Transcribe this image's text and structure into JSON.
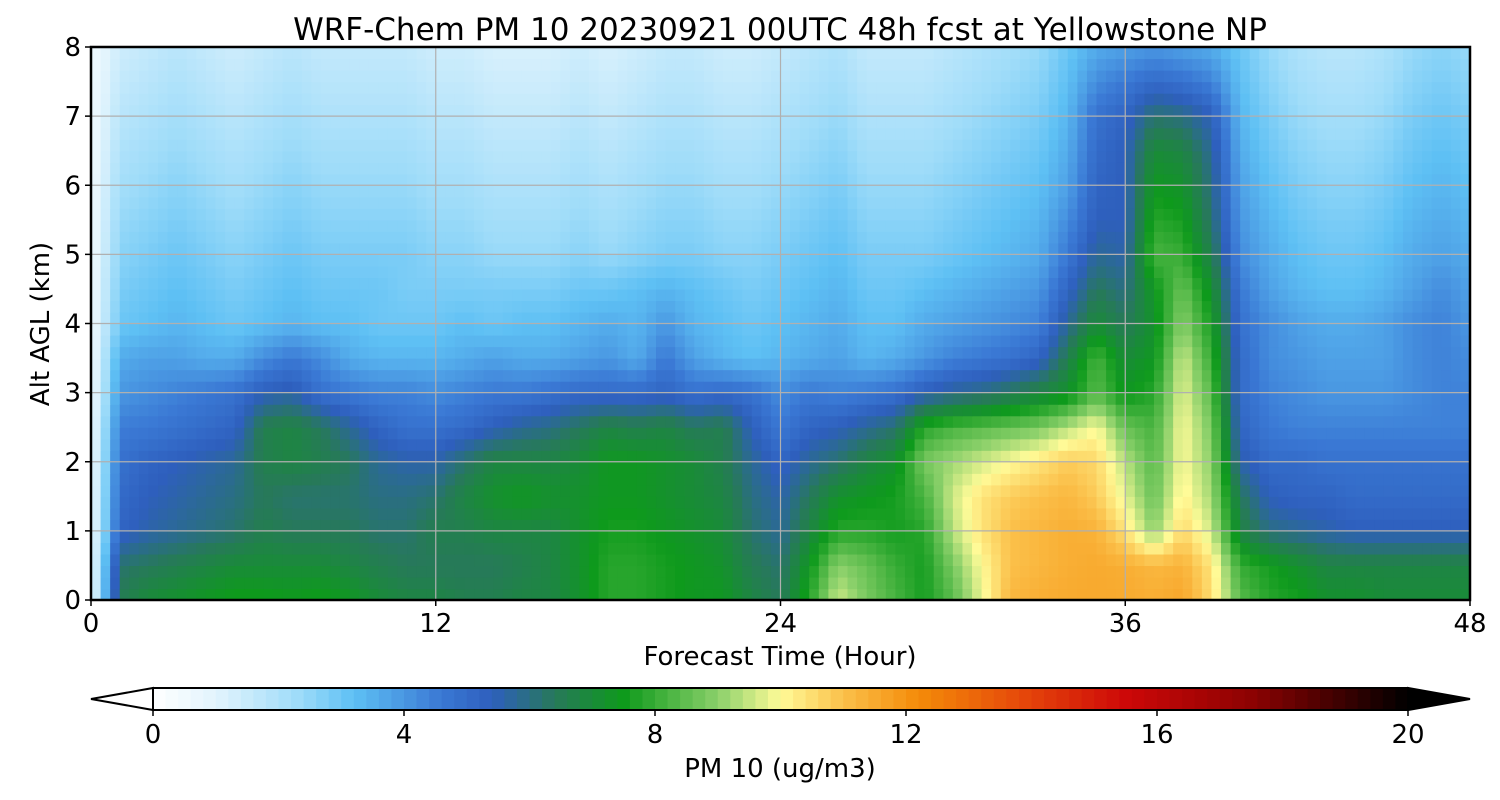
{
  "chart_data": {
    "type": "heatmap",
    "title": "WRF-Chem PM 10  20230921 00UTC 48h fcst at Yellowstone NP",
    "xlabel": "Forecast Time (Hour)",
    "ylabel": "Alt AGL (km)",
    "xlim": [
      0,
      48
    ],
    "ylim": [
      0,
      8
    ],
    "x_ticks": [
      "0",
      "12",
      "24",
      "36",
      "48"
    ],
    "y_ticks": [
      "0",
      "1",
      "2",
      "3",
      "4",
      "5",
      "6",
      "7",
      "8"
    ],
    "grid": true,
    "colorbar": {
      "label": "PM 10  (ug/m3)",
      "range": [
        0,
        20
      ],
      "ticks": [
        "0",
        "4",
        "8",
        "12",
        "16",
        "20"
      ],
      "extend": "both",
      "stops": [
        {
          "v": 0,
          "c": "#ffffff"
        },
        {
          "v": 1,
          "c": "#e2f4fd"
        },
        {
          "v": 2.3,
          "c": "#9fdcf9"
        },
        {
          "v": 3.2,
          "c": "#5ec0f4"
        },
        {
          "v": 4.6,
          "c": "#3a78d4"
        },
        {
          "v": 5.4,
          "c": "#2e5fbd"
        },
        {
          "v": 6.4,
          "c": "#27795a"
        },
        {
          "v": 7.5,
          "c": "#0e9a1c"
        },
        {
          "v": 9,
          "c": "#8ad06a"
        },
        {
          "v": 10,
          "c": "#fffb98"
        },
        {
          "v": 11,
          "c": "#fbc04a"
        },
        {
          "v": 12.2,
          "c": "#f48b09"
        },
        {
          "v": 14,
          "c": "#e4420a"
        },
        {
          "v": 15.5,
          "c": "#cd0808"
        },
        {
          "v": 17.5,
          "c": "#8d0202"
        },
        {
          "v": 20,
          "c": "#000000"
        }
      ]
    },
    "x": [
      0,
      1,
      2,
      3,
      4,
      5,
      6,
      7,
      8,
      9,
      10,
      11,
      12,
      13,
      14,
      15,
      16,
      17,
      18,
      19,
      20,
      21,
      22,
      23,
      24,
      25,
      26,
      27,
      28,
      29,
      30,
      31,
      32,
      33,
      34,
      35,
      36,
      37,
      38,
      39,
      40,
      41,
      42,
      43,
      44,
      45,
      46,
      47,
      48
    ],
    "y": [
      0,
      0.5,
      1,
      1.5,
      2,
      2.5,
      3,
      3.5,
      4,
      4.5,
      5,
      5.5,
      6,
      6.5,
      7,
      7.5,
      8
    ],
    "z": [
      [
        0.5,
        6.5,
        7,
        7.2,
        7.4,
        7.6,
        7.6,
        7.5,
        7.6,
        7.4,
        7,
        6.8,
        6.8,
        6.6,
        6.6,
        6.8,
        6.8,
        7.2,
        7.8,
        7.8,
        7.6,
        7.4,
        7.4,
        6.8,
        6.4,
        7.8,
        9.6,
        8.8,
        8.2,
        7.6,
        8.4,
        9.8,
        11.2,
        11.4,
        11.5,
        11.5,
        11.5,
        11.4,
        11.6,
        10.5,
        8.4,
        7.8,
        7.6,
        7.2,
        7.2,
        7,
        7,
        7,
        7
      ],
      [
        0.5,
        6.2,
        6.4,
        6.6,
        6.8,
        7,
        7,
        7,
        7,
        6.8,
        6.6,
        6.4,
        6.4,
        6.4,
        6.4,
        6.6,
        6.8,
        7.2,
        7.8,
        7.8,
        7.6,
        7.4,
        7.2,
        6.5,
        6.2,
        7.4,
        9,
        8.6,
        8,
        7.6,
        8.8,
        10,
        11,
        11.2,
        11.4,
        11.5,
        11.4,
        11.2,
        11.3,
        10.4,
        8,
        7.6,
        7.2,
        6.8,
        6.8,
        6.8,
        6.8,
        6.8,
        6.8
      ],
      [
        0.5,
        5.2,
        5.6,
        5.8,
        6,
        6.2,
        6.6,
        6.4,
        6.4,
        6.4,
        6.2,
        6.2,
        6.6,
        6.6,
        6.8,
        6.8,
        6.8,
        7.2,
        7.6,
        7.6,
        7.4,
        7.2,
        7,
        6.2,
        5.8,
        6.8,
        7.8,
        7.8,
        7.6,
        7.8,
        9.4,
        10.4,
        11,
        11.2,
        11.4,
        11.3,
        10.4,
        9,
        10.6,
        9.6,
        6.8,
        6,
        5.8,
        5.6,
        5.4,
        5.4,
        5.4,
        5.4,
        5.4
      ],
      [
        0.5,
        5,
        5.4,
        5.6,
        5.8,
        6,
        6.4,
        6.2,
        6.2,
        6.2,
        6,
        6,
        6.2,
        6.8,
        7.2,
        7.4,
        7.2,
        7.2,
        7.4,
        7.4,
        7.2,
        7,
        6.8,
        6,
        5.6,
        6.4,
        7.2,
        7.4,
        7.6,
        8.2,
        9.6,
        10.4,
        10.8,
        11,
        11.2,
        10.8,
        9.8,
        8.6,
        10.2,
        9.2,
        6.4,
        5.4,
        5.2,
        5.2,
        5,
        5,
        5,
        5,
        5
      ],
      [
        0.5,
        4.8,
        5.2,
        5.4,
        5.6,
        5.8,
        6.6,
        6.8,
        6.6,
        6.4,
        5.8,
        5.6,
        5.6,
        6.2,
        6.8,
        6.8,
        6.8,
        7,
        7.4,
        7.4,
        7.2,
        7,
        6.6,
        5.8,
        5.2,
        5.8,
        6.2,
        6.8,
        7.2,
        8.8,
        9.2,
        9.6,
        10,
        10.4,
        10.8,
        10.6,
        9.4,
        8.4,
        10,
        9,
        5.6,
        5,
        5,
        4.8,
        4.8,
        4.8,
        4.8,
        4.8,
        4.8
      ],
      [
        0.5,
        4.5,
        4.6,
        4.8,
        5,
        5.2,
        6.6,
        6.8,
        6.4,
        5.8,
        5.2,
        4.8,
        4.8,
        5,
        5.4,
        5.8,
        6,
        6.4,
        6.8,
        6.6,
        6.8,
        6.4,
        6.6,
        5.4,
        4.6,
        5.2,
        5.4,
        5.8,
        6.2,
        7.8,
        8.2,
        8.4,
        8.6,
        8.8,
        9.4,
        10,
        8.6,
        8.2,
        10,
        8.8,
        5.2,
        4.6,
        4.4,
        4.4,
        4.4,
        4.4,
        4.4,
        4.4,
        4.4
      ],
      [
        0.5,
        4,
        4.2,
        4.4,
        4.6,
        4.8,
        5.4,
        5.6,
        4.8,
        4.6,
        4.4,
        4.4,
        4.2,
        4.4,
        4.6,
        4.6,
        4.8,
        5,
        5,
        5,
        5.2,
        4.8,
        5,
        4.8,
        4.2,
        4.6,
        4.4,
        4.6,
        4.8,
        5.4,
        5.8,
        6,
        6.4,
        6.8,
        7.2,
        8.4,
        7.4,
        7.8,
        9.8,
        8.4,
        5,
        4.4,
        4.2,
        4,
        4,
        4,
        4.2,
        4.4,
        4.4
      ],
      [
        0.5,
        3.6,
        3.8,
        3.8,
        3.6,
        3.6,
        4.2,
        4.6,
        4.2,
        3.6,
        3.4,
        3.4,
        3.4,
        3.6,
        3.8,
        3.6,
        3.6,
        3.8,
        4,
        3.6,
        4.6,
        3.8,
        3.4,
        3.2,
        3.4,
        3.6,
        3.8,
        3.4,
        3.6,
        4,
        4.4,
        4.6,
        4.8,
        5.2,
        6.6,
        8.2,
        7,
        7.4,
        9.6,
        8,
        5,
        4.2,
        4,
        3.8,
        3.8,
        3.8,
        4.2,
        4.4,
        4.2
      ],
      [
        0.5,
        3,
        3.2,
        3.4,
        3.2,
        3,
        3.2,
        3.4,
        3.2,
        3.2,
        3,
        3,
        3,
        3.2,
        3,
        3.2,
        3.2,
        3.4,
        3.6,
        3.4,
        4,
        3.4,
        3.2,
        3,
        3.2,
        3.4,
        3.6,
        3.2,
        3.2,
        3.6,
        3.8,
        4,
        4.2,
        4.4,
        5.8,
        7,
        6.4,
        7.2,
        9,
        7.6,
        4.8,
        4.2,
        3.8,
        3.6,
        3.6,
        3.8,
        4.2,
        4.4,
        4
      ],
      [
        0.5,
        2.8,
        3,
        3.2,
        3,
        2.8,
        3,
        3.2,
        3,
        3,
        3,
        2.8,
        2.8,
        2.8,
        2.8,
        2.8,
        2.8,
        3,
        3,
        3.2,
        3.4,
        3.2,
        3,
        2.8,
        3,
        3.2,
        3.4,
        3,
        3,
        3.2,
        3.4,
        3.6,
        3.8,
        4,
        5.2,
        6.4,
        6,
        7.4,
        8.6,
        7.2,
        4.6,
        3.8,
        3.4,
        3.2,
        3.2,
        3.4,
        3.8,
        4.2,
        3.8
      ],
      [
        0.5,
        2.6,
        2.8,
        3,
        2.8,
        2.6,
        2.8,
        3,
        2.8,
        2.8,
        2.8,
        2.8,
        2.6,
        2.6,
        2.4,
        2.4,
        2.4,
        2.6,
        2.4,
        2.6,
        2.8,
        2.8,
        2.6,
        2.6,
        2.8,
        3,
        3.2,
        2.8,
        2.8,
        2.8,
        3,
        3.2,
        3.4,
        3.6,
        4.6,
        5.8,
        5.6,
        8.2,
        8,
        6.6,
        4.2,
        3.6,
        3.2,
        3,
        3,
        3.2,
        3.6,
        3.8,
        3.6
      ],
      [
        0.5,
        2.4,
        2.6,
        2.8,
        2.6,
        2.4,
        2.6,
        2.8,
        2.6,
        2.6,
        2.6,
        2.6,
        2.4,
        2.4,
        2.2,
        2.2,
        2.2,
        2.4,
        2.2,
        2.4,
        2.6,
        2.6,
        2.4,
        2.4,
        2.6,
        2.8,
        3,
        2.6,
        2.6,
        2.6,
        2.8,
        3,
        3.2,
        3.4,
        4.2,
        5.4,
        5.4,
        7.8,
        7.6,
        6.2,
        4,
        3.4,
        3,
        2.8,
        2.8,
        3,
        3.4,
        3.6,
        3.4
      ],
      [
        0.5,
        2.2,
        2.4,
        2.6,
        2.4,
        2.2,
        2.4,
        2.6,
        2.4,
        2.4,
        2.4,
        2.4,
        2.2,
        2.2,
        2,
        2,
        2,
        2.2,
        2,
        2.2,
        2.4,
        2.4,
        2.2,
        2.2,
        2.4,
        2.6,
        2.8,
        2.4,
        2.4,
        2.4,
        2.6,
        2.8,
        3,
        3.2,
        3.8,
        5.2,
        5.4,
        7.4,
        7.2,
        6,
        3.8,
        3.2,
        2.8,
        2.6,
        2.6,
        2.8,
        3.2,
        3.4,
        3.2
      ],
      [
        0.5,
        2,
        2.2,
        2.4,
        2.2,
        2,
        2.2,
        2.4,
        2.2,
        2.2,
        2.2,
        2.2,
        2,
        2,
        1.8,
        1.8,
        1.8,
        2,
        1.8,
        2,
        2.2,
        2.2,
        2,
        2,
        2.2,
        2.4,
        2.6,
        2.2,
        2.2,
        2.2,
        2.4,
        2.6,
        2.8,
        3,
        3.6,
        5,
        5.4,
        7,
        6.8,
        5.8,
        3.6,
        3,
        2.6,
        2.4,
        2.4,
        2.6,
        3,
        3.2,
        3
      ],
      [
        0.5,
        1.8,
        2,
        2.2,
        2,
        1.8,
        2,
        2.2,
        2,
        2,
        2,
        2,
        1.8,
        1.8,
        1.6,
        1.6,
        1.6,
        1.8,
        1.6,
        1.8,
        2,
        2,
        1.8,
        1.8,
        2,
        2.2,
        2.4,
        2,
        2,
        2,
        2.2,
        2.4,
        2.6,
        2.8,
        3.4,
        4.8,
        5.2,
        6.2,
        6,
        5.4,
        3.4,
        2.8,
        2.4,
        2.2,
        2.2,
        2.4,
        2.8,
        3,
        2.8
      ],
      [
        0.5,
        1.6,
        1.8,
        2,
        1.8,
        1.6,
        1.8,
        2,
        1.8,
        1.8,
        1.8,
        1.8,
        1.6,
        1.6,
        1.4,
        1.4,
        1.4,
        1.6,
        1.4,
        1.6,
        1.8,
        1.8,
        1.6,
        1.6,
        1.8,
        2,
        2.2,
        1.8,
        1.8,
        1.8,
        2,
        2.2,
        2.4,
        2.6,
        3.2,
        4.2,
        4.6,
        5,
        4.8,
        4.4,
        3.2,
        2.6,
        2.2,
        2,
        2,
        2.2,
        2.6,
        2.8,
        2.6
      ],
      [
        0.5,
        1.4,
        1.6,
        1.8,
        1.6,
        1.4,
        1.6,
        1.8,
        1.6,
        1.6,
        1.6,
        1.6,
        1.4,
        1.4,
        1.2,
        1.2,
        1.2,
        1.4,
        1.2,
        1.4,
        1.6,
        1.6,
        1.4,
        1.4,
        1.6,
        1.8,
        2,
        1.6,
        1.6,
        1.6,
        1.8,
        2,
        2.2,
        2.4,
        3,
        3.6,
        3.8,
        4,
        3.8,
        3.6,
        3,
        2.4,
        2,
        1.8,
        1.8,
        2,
        2.4,
        2.6,
        2.4
      ]
    ]
  }
}
